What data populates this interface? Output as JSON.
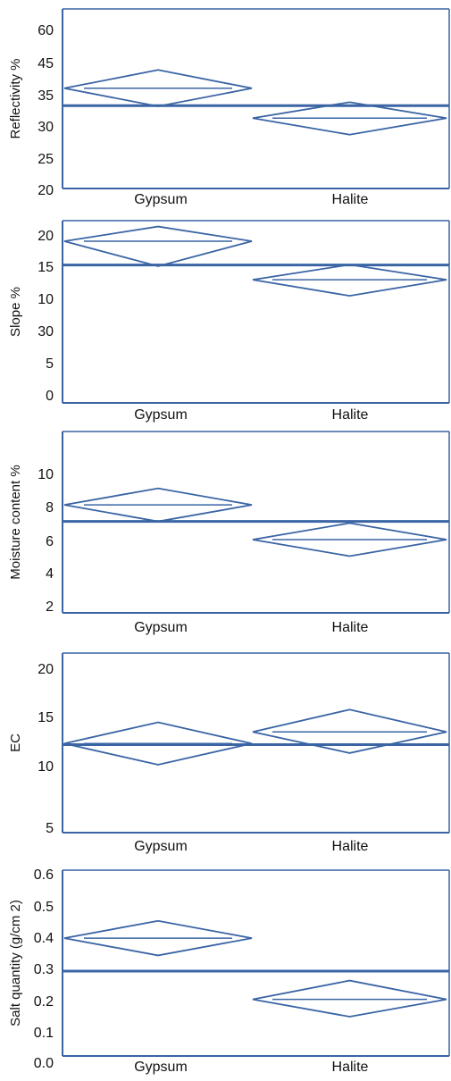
{
  "colors": {
    "line": "#3a64a4",
    "text": "#111111"
  },
  "chart_data": [
    {
      "type": "diamond",
      "ylabel": "Reflectivity %",
      "tick_labels": [
        "60",
        "45",
        "35",
        "30",
        "25",
        "20"
      ],
      "categories": [
        "Gypsum",
        "Halite"
      ],
      "grand_mean_index": 2.35,
      "groups": [
        {
          "name": "Gypsum",
          "mean_index": 1.8,
          "lower_index": 1.23,
          "upper_index": 2.37
        },
        {
          "name": "Halite",
          "mean_index": 2.75,
          "lower_index": 2.24,
          "upper_index": 3.27
        }
      ]
    },
    {
      "type": "diamond",
      "ylabel": "Slope %",
      "tick_labels": [
        "20",
        "15",
        "10",
        "30",
        "5",
        "0"
      ],
      "categories": [
        "Gypsum",
        "Halite"
      ],
      "grand_mean_index": 0.96,
      "groups": [
        {
          "name": "Gypsum",
          "mean_index": 0.2,
          "lower_index": -0.27,
          "upper_index": 1.0
        },
        {
          "name": "Halite",
          "mean_index": 1.42,
          "lower_index": 0.95,
          "upper_index": 1.92
        }
      ]
    },
    {
      "type": "diamond",
      "ylabel": "Moisture content %",
      "tick_labels": [
        "10",
        "8",
        "6",
        "4",
        "2"
      ],
      "y_values": [
        10,
        8,
        6,
        4,
        2
      ],
      "categories": [
        "Gypsum",
        "Halite"
      ],
      "grand_mean": 7.1,
      "groups": [
        {
          "name": "Gypsum",
          "mean": 8.1,
          "lower": 7.1,
          "upper": 9.1
        },
        {
          "name": "Halite",
          "mean": 6.0,
          "lower": 5.0,
          "upper": 7.0
        }
      ]
    },
    {
      "type": "diamond",
      "ylabel": "EC",
      "tick_labels": [
        "20",
        "15",
        "10",
        "5"
      ],
      "y_values": [
        20,
        15,
        10,
        5
      ],
      "categories": [
        "Gypsum",
        "Halite"
      ],
      "grand_mean": 12.8,
      "groups": [
        {
          "name": "Gypsum",
          "mean": 12.9,
          "lower": 10.9,
          "upper": 14.9
        },
        {
          "name": "Halite",
          "mean": 14.0,
          "lower": 12.0,
          "upper": 16.1
        }
      ]
    },
    {
      "type": "diamond",
      "ylabel": "Salt quantity (g/cm 2)",
      "tick_labels": [
        "0.6",
        "0.5",
        "0.4",
        "0.3",
        "0.2",
        "0.1",
        "0.0"
      ],
      "y_values": [
        0.6,
        0.5,
        0.4,
        0.3,
        0.2,
        0.1,
        0.0
      ],
      "categories": [
        "Gypsum",
        "Halite"
      ],
      "grand_mean": 0.29,
      "groups": [
        {
          "name": "Gypsum",
          "mean": 0.395,
          "lower": 0.34,
          "upper": 0.45
        },
        {
          "name": "Halite",
          "mean": 0.2,
          "lower": 0.145,
          "upper": 0.26
        }
      ]
    }
  ]
}
